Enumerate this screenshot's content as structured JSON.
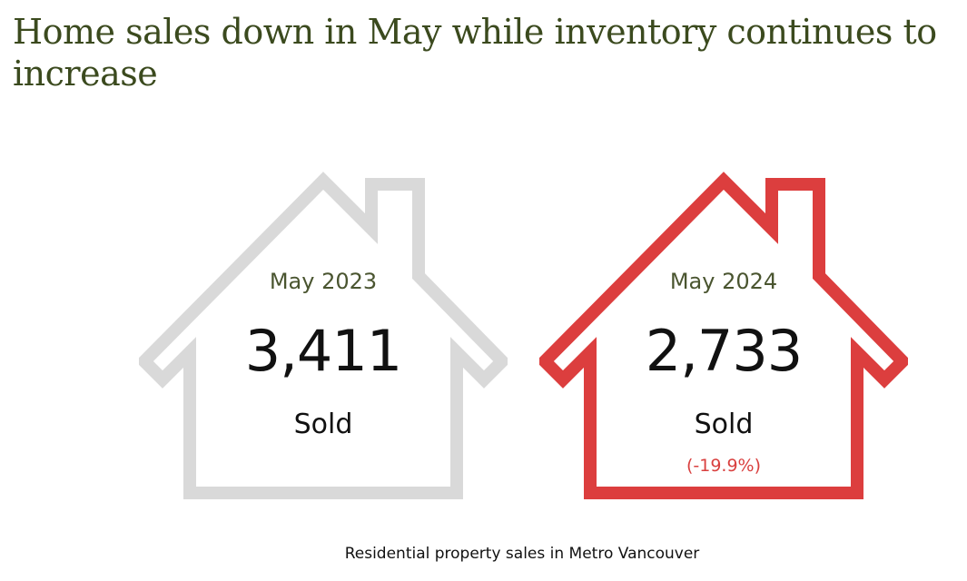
{
  "headline": "Home sales down in May while inventory continues to increase",
  "colors": {
    "title": "#3b4a1e",
    "house_2023": "#d9d9d9",
    "house_2024": "#dc3e3e",
    "change_text": "#d9403f"
  },
  "cards": [
    {
      "period": "May 2023",
      "value": "3,411",
      "unit": "Sold"
    },
    {
      "period": "May 2024",
      "value": "2,733",
      "unit": "Sold",
      "change": "(-19.9%)"
    }
  ],
  "caption": "Residential property sales in Metro Vancouver"
}
